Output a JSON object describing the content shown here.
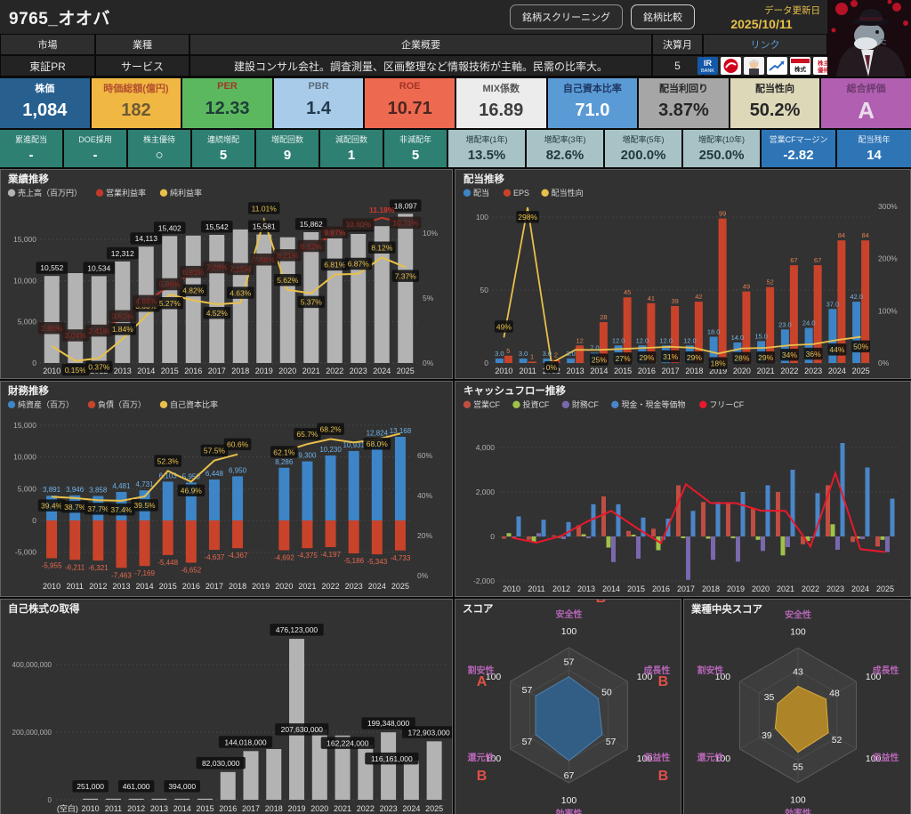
{
  "header": {
    "title": "9765_オオバ",
    "screening_button": "銘柄スクリーニング",
    "compare_button": "銘柄比較",
    "update_label": "データ更新日",
    "update_date": "2025/10/11"
  },
  "info": {
    "market_label": "市場",
    "market": "東証PR",
    "industry_label": "業種",
    "industry": "サービス",
    "profile_label": "企業概要",
    "profile": "建設コンサル会社。調査測量、区画整理など情報技術が主軸。民需の比率大。",
    "fiscal_label": "決算月",
    "fiscal_month": "5",
    "links_label": "リンク",
    "link_icons": [
      "IR BANK",
      "みんかぶ",
      "アナリスト",
      "株価チャート",
      "株式新聞",
      "株主優待"
    ]
  },
  "metrics": [
    {
      "label": "株価",
      "value": "1,084",
      "bg": "#27608f",
      "hc": "#ffffff",
      "vc": "#ffffff"
    },
    {
      "label": "時価総額(億円)",
      "value": "182",
      "bg": "#f0b843",
      "hc": "#b5502f",
      "vc": "#6d5a35"
    },
    {
      "label": "PER",
      "value": "12.33",
      "bg": "#5cb85f",
      "hc": "#9e3a2a",
      "vc": "#1e3d38"
    },
    {
      "label": "PBR",
      "value": "1.4",
      "bg": "#a7cbe8",
      "hc": "#5a6b7a",
      "vc": "#243a4e"
    },
    {
      "label": "ROE",
      "value": "10.71",
      "bg": "#ed6a51",
      "hc": "#a23325",
      "vc": "#4d2620"
    },
    {
      "label": "MIX係数",
      "value": "16.89",
      "bg": "#ececec",
      "hc": "#555555",
      "vc": "#3d3d3d"
    },
    {
      "label": "自己資本比率",
      "value": "71.0",
      "bg": "#5b9bd5",
      "hc": "#1f3864",
      "vc": "#ffffff"
    },
    {
      "label": "配当利回り",
      "value": "3.87%",
      "bg": "#a6a6a6",
      "hc": "#262626",
      "vc": "#262626"
    },
    {
      "label": "配当性向",
      "value": "50.2%",
      "bg": "#ddd8b8",
      "hc": "#262626",
      "vc": "#262626"
    },
    {
      "label": "総合評価",
      "value": "A",
      "bg": "#b15fb1",
      "hc": "#6d3a6d",
      "vc": "#eadcea",
      "grade": true
    }
  ],
  "flags": [
    {
      "label": "累進配当",
      "value": "-"
    },
    {
      "label": "DOE採用",
      "value": "-"
    },
    {
      "label": "株主優待",
      "value": "○"
    },
    {
      "label": "連続増配",
      "value": "5"
    },
    {
      "label": "増配回数",
      "value": "9"
    },
    {
      "label": "減配回数",
      "value": "1"
    },
    {
      "label": "非減配年",
      "value": "5"
    }
  ],
  "rates": [
    {
      "label": "増配率(1年)",
      "value": "13.5%"
    },
    {
      "label": "増配率(3年)",
      "value": "82.6%"
    },
    {
      "label": "増配率(5年)",
      "value": "200.0%"
    },
    {
      "label": "増配率(10年)",
      "value": "250.0%"
    }
  ],
  "cf_cells": [
    {
      "label": "営業CFマージン",
      "value": "-2.82"
    },
    {
      "label": "配当残年",
      "value": "14"
    }
  ],
  "colors": {
    "flag_bg": "#2e8073",
    "rate_bg": "#a8c3c6",
    "rate_text": "#1e3a3a",
    "cf_bg": "#2e75b6",
    "accent_yellow": "#e8c04a",
    "op_red": "#c0392b",
    "free_red": "#e8192c",
    "bar_gray": "#b3b3b3",
    "bar_blue": "#3d85c6",
    "bar_orange": "#c9432b",
    "cf_green": "#a0c24a",
    "cf_purple": "#7a68ae",
    "cf_cash": "#4a86c8",
    "radar_blue": "#31608c",
    "radar_gold": "#b98c25",
    "radar_axis": "#b565b5",
    "grade_red": "#e05048"
  },
  "chart_data": [
    {
      "name": "performance",
      "type": "bar",
      "title": "業績推移",
      "legend": [
        {
          "name": "売上高（百万円）",
          "color": "#b3b3b3"
        },
        {
          "name": "営業利益率",
          "color": "#c0392b"
        },
        {
          "name": "純利益率",
          "color": "#e8c04a"
        }
      ],
      "categories": [
        "2010",
        "2011",
        "2012",
        "2013",
        "2014",
        "2015",
        "2016",
        "2017",
        "2018",
        "2019",
        "2020",
        "2021",
        "2022",
        "2023",
        "2024",
        "2025"
      ],
      "revenue": [
        10552,
        10900,
        10534,
        12312,
        14113,
        15402,
        15450,
        15542,
        16200,
        15581,
        15250,
        15862,
        16100,
        15648,
        16600,
        18097
      ],
      "revenue_labels": [
        "10,552",
        null,
        "10,534",
        "12,312",
        "14,113",
        "15,402",
        null,
        "15,542",
        null,
        "15,581",
        null,
        "15,862",
        null,
        "15,648",
        null,
        "18,097"
      ],
      "op_margin": [
        2.6,
        2.04,
        2.41,
        3.52,
        4.68,
        5.98,
        6.93,
        7.28,
        7.15,
        7.88,
        8.21,
        8.92,
        9.97,
        10.6,
        11.18,
        10.71
      ],
      "net_margin": [
        1.3,
        0.15,
        0.37,
        1.84,
        3.63,
        5.27,
        4.82,
        4.52,
        4.63,
        11.01,
        5.62,
        5.37,
        6.81,
        6.87,
        8.12,
        7.37
      ],
      "net_labels": [
        null,
        "0.15%",
        "0.37%",
        "1.84%",
        "3.63%",
        "5.27%",
        "4.82%",
        "4.52%",
        "4.63%",
        "11.01%",
        "5.62%",
        "5.37%",
        "6.81%",
        "6.87%",
        "8.12%",
        "7.37%"
      ],
      "ylim_left": [
        0,
        20000
      ],
      "yticks_left": [
        0,
        5000,
        10000,
        15000
      ],
      "ylim_right": [
        0,
        12.5
      ],
      "yticks_right": [
        "0%",
        "5%",
        "10%"
      ]
    },
    {
      "name": "dividend",
      "type": "bar",
      "title": "配当推移",
      "legend": [
        {
          "name": "配当",
          "color": "#3d85c6"
        },
        {
          "name": "EPS",
          "color": "#c9432b"
        },
        {
          "name": "配当性向",
          "color": "#e8c04a"
        }
      ],
      "categories": [
        "2010",
        "2011",
        "2012",
        "2013",
        "2014",
        "2015",
        "2016",
        "2017",
        "2018",
        "2019",
        "2020",
        "2021",
        "2022",
        "2023",
        "2024",
        "2025"
      ],
      "dividend": [
        3,
        3,
        3,
        3,
        7,
        12,
        12,
        12,
        12,
        18,
        14,
        15,
        23,
        24,
        37,
        42
      ],
      "dividend_labels": [
        "3.0",
        "3.0",
        "3.0",
        "3.0",
        "7.0",
        "12.0",
        "12.0",
        "12.0",
        "12.0",
        "18.0",
        "14.0",
        "15.0",
        "23.0",
        "24.0",
        "37.0",
        "42.0"
      ],
      "eps": [
        5,
        1,
        2,
        12,
        28,
        45,
        41,
        39,
        42,
        99,
        49,
        52,
        67,
        67,
        84,
        84
      ],
      "payout": [
        49,
        298,
        0,
        25,
        25,
        27,
        29,
        31,
        29,
        18,
        28,
        29,
        34,
        36,
        44,
        50
      ],
      "payout_labels": [
        "49%",
        "298%",
        "0%",
        null,
        "25%",
        "27%",
        "29%",
        "31%",
        "29%",
        "18%",
        "28%",
        "29%",
        "34%",
        "36%",
        "44%",
        "50%"
      ],
      "ylim_left": [
        0,
        110
      ],
      "yticks_left": [
        0,
        50,
        100
      ],
      "ylim_right": [
        0,
        330
      ],
      "yticks_right": [
        "0%",
        "100%",
        "200%",
        "300%"
      ]
    },
    {
      "name": "finance",
      "type": "bar",
      "title": "財務推移",
      "legend": [
        {
          "name": "純資産（百万）",
          "color": "#3d85c6"
        },
        {
          "name": "負債（百万）",
          "color": "#c9432b"
        },
        {
          "name": "自己資本比率",
          "color": "#e8c04a"
        }
      ],
      "categories": [
        "2010",
        "2011",
        "2012",
        "2013",
        "2014",
        "2015",
        "2016",
        "2017",
        "2018",
        "2019",
        "2020",
        "2021",
        "2022",
        "2023",
        "2024",
        "2025"
      ],
      "assets": [
        3891,
        3946,
        3858,
        4481,
        4731,
        6103,
        5950,
        6448,
        6950,
        null,
        8286,
        9300,
        10230,
        10931,
        12824,
        13168
      ],
      "asset_labels": [
        "3,891",
        "3,946",
        "3,858",
        "4,481",
        "4,731",
        "6,103",
        "5,950",
        "6,448",
        "6,950",
        null,
        "8,286",
        "9,300",
        "10,230",
        "10,931",
        "12,824",
        "13,168"
      ],
      "liabilities": [
        -5955,
        -6211,
        -6321,
        -7463,
        -7169,
        -5448,
        -6652,
        -4637,
        -4367,
        null,
        -4692,
        -4375,
        -4197,
        -5186,
        -5343,
        -4733
      ],
      "liab_labels": [
        "-5,955",
        "-6,211",
        "-6,321",
        "-7,463",
        "-7,169",
        "-5,448",
        "-6,652",
        "-4,637",
        "-4,367",
        null,
        "-4,692",
        "-4,375",
        "-4,197",
        "-5,186",
        "-5,343",
        "-4,733"
      ],
      "equity_ratio": [
        39.4,
        38.7,
        37.7,
        37.4,
        39.5,
        52.3,
        46.9,
        57.5,
        60.6,
        null,
        62.1,
        65.7,
        68.2,
        66.5,
        68.0,
        71.0
      ],
      "ratio_labels": [
        "39.4%",
        "38.7%",
        "37.7%",
        "37.4%",
        "39.5%",
        "52.3%",
        "46.9%",
        "57.5%",
        "60.6%",
        null,
        "62.1%",
        "65.7%",
        "68.2%",
        null,
        "68.0%",
        null
      ],
      "ylim_left": [
        -7500,
        15500
      ],
      "yticks_left": [
        -5000,
        0,
        5000,
        10000,
        15000
      ],
      "ylim_right": [
        0,
        80
      ],
      "yticks_right": [
        "0%",
        "20%",
        "40%",
        "60%"
      ]
    },
    {
      "name": "cashflow",
      "type": "bar",
      "title": "キャッシュフロー推移",
      "legend": [
        {
          "name": "営業CF",
          "color": "#bf4d42"
        },
        {
          "name": "投資CF",
          "color": "#a0c24a"
        },
        {
          "name": "財務CF",
          "color": "#7a68ae"
        },
        {
          "name": "現金・現金等価物",
          "color": "#4a86c8"
        },
        {
          "name": "フリーCF",
          "color": "#e8192c"
        }
      ],
      "categories": [
        "2010",
        "2011",
        "2012",
        "2013",
        "2014",
        "2015",
        "2016",
        "2017",
        "2018",
        "2019",
        "2020",
        "2021",
        "2022",
        "2023",
        "2024",
        "2025"
      ],
      "series": [
        {
          "name": "営業CF",
          "values": [
            -100,
            -150,
            50,
            500,
            1800,
            250,
            350,
            2300,
            1550,
            1500,
            1250,
            2000,
            -350,
            2300,
            -250,
            -450
          ]
        },
        {
          "name": "投資CF",
          "values": [
            150,
            -250,
            -60,
            100,
            -500,
            80,
            -620,
            -80,
            -100,
            -80,
            -150,
            -850,
            -200,
            550,
            -100,
            -150
          ]
        },
        {
          "name": "財務CF",
          "values": [
            -60,
            150,
            -120,
            -80,
            -1150,
            -1000,
            -150,
            -1950,
            -1050,
            -1130,
            -650,
            -480,
            -80,
            -600,
            -120,
            -700
          ]
        },
        {
          "name": "現金・現金等価物",
          "values": [
            900,
            750,
            650,
            1450,
            1450,
            850,
            800,
            1150,
            1550,
            2000,
            2300,
            3000,
            1950,
            4200,
            3100,
            1700
          ]
        },
        {
          "name": "フリーCF",
          "values": [
            -50,
            -280,
            30,
            650,
            1150,
            400,
            -300,
            2350,
            1500,
            1500,
            1160,
            1150,
            -450,
            2850,
            -570,
            -700
          ]
        }
      ],
      "ylim": [
        -2400,
        4600
      ],
      "yticks": [
        -2000,
        0,
        2000,
        4000
      ]
    },
    {
      "name": "treasury",
      "type": "bar",
      "title": "自己株式の取得",
      "categories": [
        "(空白)",
        "2010",
        "2011",
        "2012",
        "2013",
        "2014",
        "2015",
        "2016",
        "2017",
        "2018",
        "2019",
        "2020",
        "2021",
        "2022",
        "2023",
        "2024",
        "2025"
      ],
      "values": [
        0,
        251000,
        180000,
        461000,
        150000,
        394000,
        160000,
        82030000,
        144018000,
        150000000,
        476123000,
        207630000,
        190000000,
        162224000,
        199348000,
        116161000,
        172903000
      ],
      "labels": [
        null,
        "251,000",
        null,
        "461,000",
        null,
        "394,000",
        null,
        "82,030,000",
        "144,018,000",
        null,
        "476,123,000",
        "207,630,000",
        null,
        "162,224,000",
        "199,348,000",
        "116,161,000",
        "172,903,000"
      ],
      "ylim": [
        0,
        520000000
      ],
      "yticks_labels": [
        "0",
        "200,000,000",
        "400,000,000"
      ],
      "yticks": [
        0,
        200000000,
        400000000
      ]
    },
    {
      "name": "score",
      "type": "radar",
      "title": "スコア",
      "axes": [
        "安全性",
        "成長性",
        "収益性",
        "効率性",
        "還元性",
        "割安性"
      ],
      "values": [
        57,
        50,
        57,
        67,
        57,
        57
      ],
      "grades": [
        "B",
        "B",
        "B",
        "A",
        "B",
        "A"
      ],
      "max": 100
    },
    {
      "name": "industry_score",
      "type": "radar",
      "title": "業種中央スコア",
      "axes": [
        "安全性",
        "成長性",
        "収益性",
        "効率性",
        "還元性",
        "割安性"
      ],
      "values": [
        43,
        48,
        52,
        55,
        39,
        35
      ],
      "grades": null,
      "max": 100
    }
  ]
}
